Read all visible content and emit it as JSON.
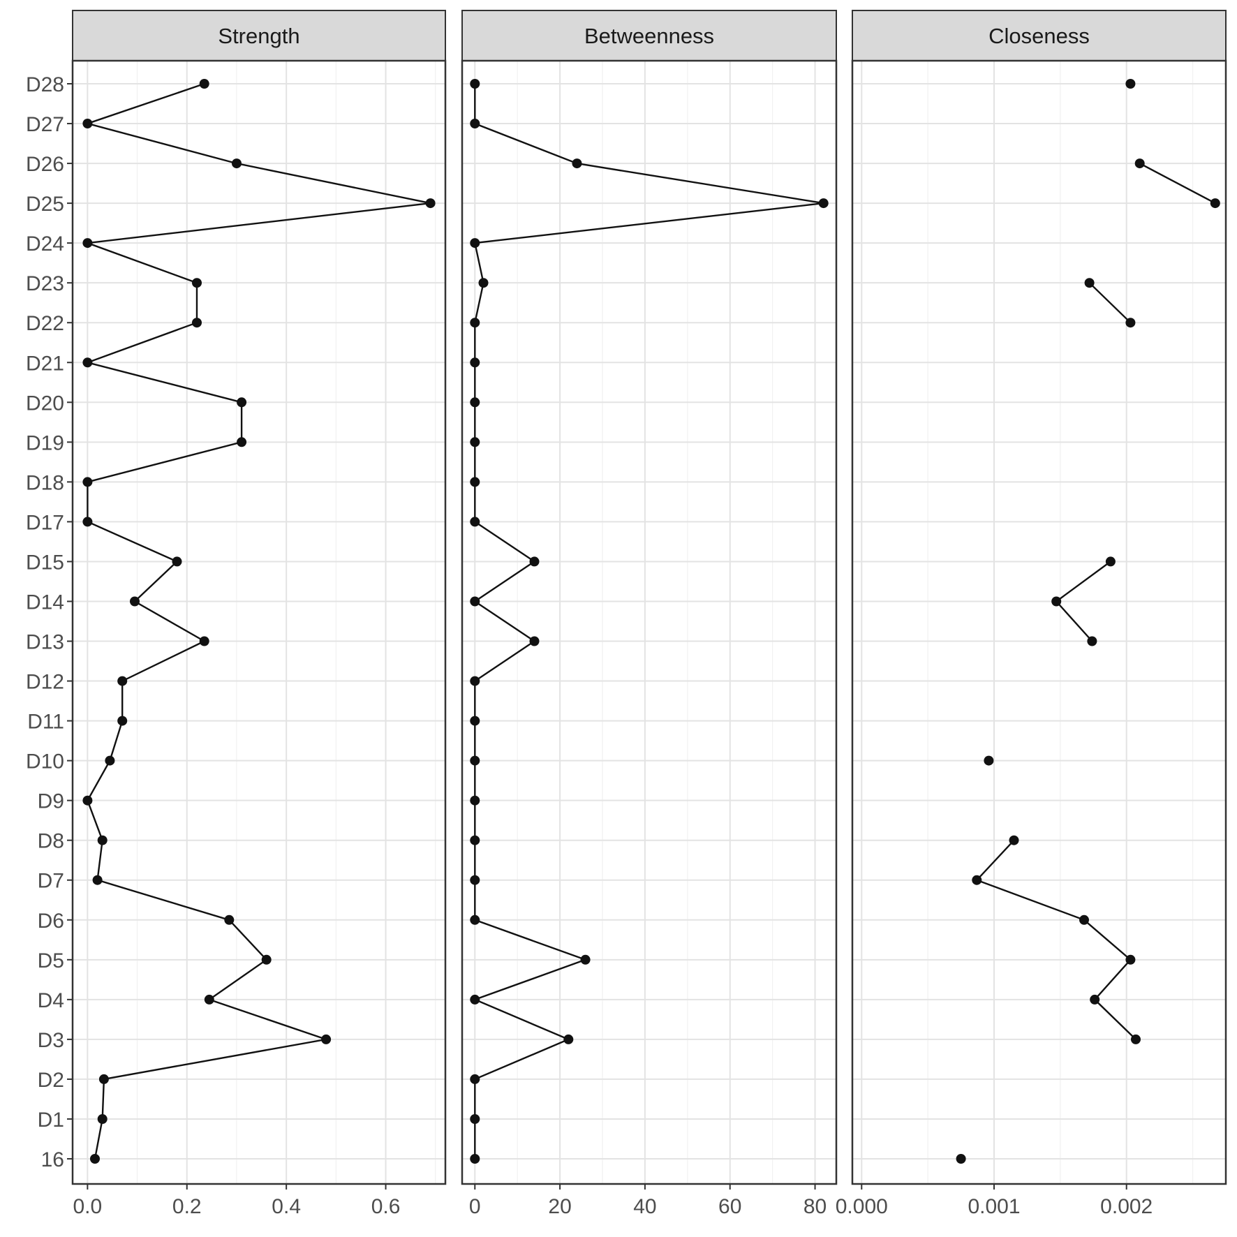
{
  "chart_data": {
    "type": "line",
    "orientation": "horizontal-values",
    "facets": [
      "Strength",
      "Betweenness",
      "Closeness"
    ],
    "categories": [
      "16",
      "D1",
      "D2",
      "D3",
      "D4",
      "D5",
      "D6",
      "D7",
      "D8",
      "D9",
      "D10",
      "D11",
      "D12",
      "D13",
      "D14",
      "D15",
      "D17",
      "D18",
      "D19",
      "D20",
      "D21",
      "D22",
      "D23",
      "D24",
      "D25",
      "D26",
      "D27",
      "D28"
    ],
    "panels": [
      {
        "name": "Strength",
        "xlim": [
          -0.03,
          0.72
        ],
        "ticks": [
          0.0,
          0.2,
          0.4,
          0.6
        ],
        "tick_labels": [
          "0.0",
          "0.2",
          "0.4",
          "0.6"
        ],
        "values": [
          0.015,
          0.03,
          0.033,
          0.48,
          0.245,
          0.36,
          0.285,
          0.02,
          0.03,
          0.0,
          0.045,
          0.07,
          0.07,
          0.235,
          0.095,
          0.18,
          0.0,
          0.0,
          0.31,
          0.31,
          0.0,
          0.22,
          0.22,
          0.0,
          0.69,
          0.3,
          0.0,
          0.235
        ]
      },
      {
        "name": "Betweenness",
        "xlim": [
          -3,
          85
        ],
        "ticks": [
          0,
          20,
          40,
          60,
          80
        ],
        "tick_labels": [
          "0",
          "20",
          "40",
          "60",
          "80"
        ],
        "values": [
          0,
          0,
          0,
          22,
          0,
          26,
          0,
          0,
          0,
          0,
          0,
          0,
          0,
          14,
          0,
          14,
          0,
          0,
          0,
          0,
          0,
          0,
          2,
          0,
          82,
          24,
          0,
          0
        ]
      },
      {
        "name": "Closeness",
        "xlim": [
          -7e-05,
          0.00275
        ],
        "ticks": [
          0.0,
          0.001,
          0.002
        ],
        "tick_labels": [
          "0.000",
          "0.001",
          "0.002"
        ],
        "values": [
          0.00075,
          null,
          null,
          0.00207,
          0.00176,
          0.00203,
          0.00168,
          0.00087,
          0.00115,
          null,
          0.00096,
          null,
          null,
          0.00174,
          0.00147,
          0.00188,
          null,
          null,
          null,
          null,
          null,
          0.00203,
          0.00172,
          null,
          0.00267,
          0.0021,
          null,
          0.00203
        ]
      }
    ],
    "grid": true,
    "legend": "none"
  }
}
